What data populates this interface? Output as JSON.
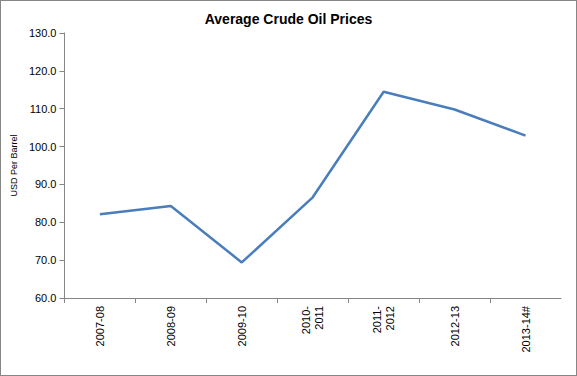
{
  "chart_data": {
    "type": "line",
    "title": "Average Crude Oil Prices",
    "y_label": "USD Per Barrel",
    "categories": [
      "2007-08",
      "2008-09",
      "2009-10",
      "2010-\n2011",
      "2011-\n2012",
      "2012-13",
      "2013-14#"
    ],
    "values": [
      82.1,
      84.3,
      69.4,
      86.6,
      114.5,
      109.8,
      102.9
    ],
    "color": "#4a7ebb",
    "marker": "none",
    "line_style": "solid",
    "ylim": [
      60,
      130
    ],
    "yticks": [
      {
        "value": 60,
        "label": "60.0"
      },
      {
        "value": 70,
        "label": "70.0"
      },
      {
        "value": 80,
        "label": "80.0"
      },
      {
        "value": 90,
        "label": "90.0"
      },
      {
        "value": 100,
        "label": "100.0"
      },
      {
        "value": 110,
        "label": "110.0"
      },
      {
        "value": 120,
        "label": "120.0"
      },
      {
        "value": 130,
        "label": "130.0"
      }
    ],
    "grid": false
  }
}
